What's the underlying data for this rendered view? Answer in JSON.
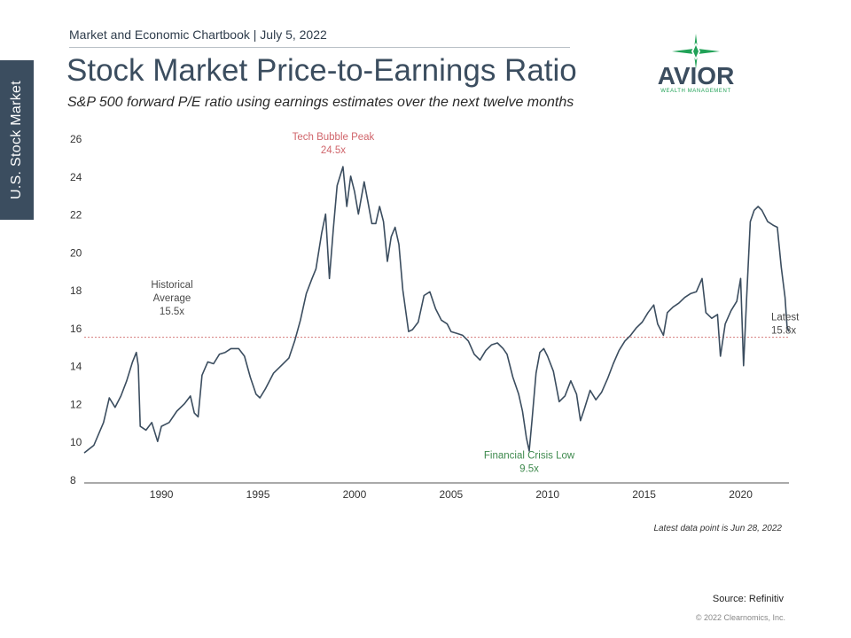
{
  "header": {
    "line": "Market and Economic Chartbook | July 5, 2022",
    "title": "Stock Market Price-to-Earnings Ratio",
    "subtitle": "S&P 500 forward P/E ratio using earnings estimates over the next twelve months"
  },
  "sidebar": {
    "label": "U.S. Stock Market"
  },
  "logo": {
    "word": "AVIOR",
    "tagline": "WEALTH MANAGEMENT"
  },
  "chart_data": {
    "type": "line",
    "title": "",
    "xlabel": "",
    "ylabel": "",
    "xlim": [
      1986,
      2022.5
    ],
    "ylim": [
      8,
      26
    ],
    "yticks": [
      8,
      10,
      12,
      14,
      16,
      18,
      20,
      22,
      24,
      26
    ],
    "xticks": [
      1990,
      1995,
      2000,
      2005,
      2010,
      2015,
      2020
    ],
    "grid": false,
    "reference_line": {
      "value": 15.5,
      "style": "dotted",
      "color": "#d47a7a"
    },
    "series": [
      {
        "color": "#3b4d5f",
        "points": [
          [
            1986.0,
            9.4
          ],
          [
            1986.5,
            9.8
          ],
          [
            1987.0,
            11.0
          ],
          [
            1987.3,
            12.3
          ],
          [
            1987.6,
            11.8
          ],
          [
            1987.9,
            12.4
          ],
          [
            1988.2,
            13.2
          ],
          [
            1988.5,
            14.2
          ],
          [
            1988.7,
            14.7
          ],
          [
            1988.8,
            14.0
          ],
          [
            1988.9,
            10.8
          ],
          [
            1989.2,
            10.6
          ],
          [
            1989.5,
            11.0
          ],
          [
            1989.8,
            10.0
          ],
          [
            1990.0,
            10.8
          ],
          [
            1990.4,
            11.0
          ],
          [
            1990.8,
            11.6
          ],
          [
            1991.2,
            12.0
          ],
          [
            1991.5,
            12.4
          ],
          [
            1991.7,
            11.5
          ],
          [
            1991.9,
            11.3
          ],
          [
            1992.1,
            13.5
          ],
          [
            1992.4,
            14.2
          ],
          [
            1992.7,
            14.1
          ],
          [
            1993.0,
            14.6
          ],
          [
            1993.3,
            14.7
          ],
          [
            1993.6,
            14.9
          ],
          [
            1994.0,
            14.9
          ],
          [
            1994.3,
            14.5
          ],
          [
            1994.6,
            13.4
          ],
          [
            1994.9,
            12.5
          ],
          [
            1995.1,
            12.3
          ],
          [
            1995.4,
            12.8
          ],
          [
            1995.8,
            13.6
          ],
          [
            1996.2,
            14.0
          ],
          [
            1996.6,
            14.4
          ],
          [
            1996.9,
            15.3
          ],
          [
            1997.2,
            16.4
          ],
          [
            1997.5,
            17.8
          ],
          [
            1997.8,
            18.6
          ],
          [
            1998.0,
            19.1
          ],
          [
            1998.3,
            21.0
          ],
          [
            1998.5,
            22.0
          ],
          [
            1998.7,
            18.6
          ],
          [
            1998.9,
            21.2
          ],
          [
            1999.1,
            23.5
          ],
          [
            1999.4,
            24.5
          ],
          [
            1999.6,
            22.4
          ],
          [
            1999.8,
            24.0
          ],
          [
            2000.0,
            23.2
          ],
          [
            2000.2,
            22.0
          ],
          [
            2000.5,
            23.7
          ],
          [
            2000.7,
            22.6
          ],
          [
            2000.9,
            21.5
          ],
          [
            2001.1,
            21.5
          ],
          [
            2001.3,
            22.4
          ],
          [
            2001.5,
            21.6
          ],
          [
            2001.7,
            19.5
          ],
          [
            2001.9,
            20.8
          ],
          [
            2002.1,
            21.3
          ],
          [
            2002.3,
            20.4
          ],
          [
            2002.5,
            18.0
          ],
          [
            2002.8,
            15.8
          ],
          [
            2003.0,
            15.9
          ],
          [
            2003.3,
            16.3
          ],
          [
            2003.6,
            17.7
          ],
          [
            2003.9,
            17.9
          ],
          [
            2004.2,
            17.0
          ],
          [
            2004.5,
            16.4
          ],
          [
            2004.8,
            16.2
          ],
          [
            2005.0,
            15.8
          ],
          [
            2005.3,
            15.7
          ],
          [
            2005.6,
            15.6
          ],
          [
            2005.9,
            15.3
          ],
          [
            2006.2,
            14.6
          ],
          [
            2006.5,
            14.3
          ],
          [
            2006.8,
            14.8
          ],
          [
            2007.1,
            15.1
          ],
          [
            2007.4,
            15.2
          ],
          [
            2007.7,
            14.9
          ],
          [
            2007.9,
            14.6
          ],
          [
            2008.2,
            13.4
          ],
          [
            2008.5,
            12.5
          ],
          [
            2008.7,
            11.6
          ],
          [
            2008.9,
            10.2
          ],
          [
            2009.05,
            9.5
          ],
          [
            2009.2,
            11.2
          ],
          [
            2009.4,
            13.6
          ],
          [
            2009.6,
            14.7
          ],
          [
            2009.8,
            14.9
          ],
          [
            2010.0,
            14.5
          ],
          [
            2010.3,
            13.7
          ],
          [
            2010.6,
            12.1
          ],
          [
            2010.9,
            12.4
          ],
          [
            2011.2,
            13.2
          ],
          [
            2011.5,
            12.5
          ],
          [
            2011.7,
            11.1
          ],
          [
            2011.9,
            11.7
          ],
          [
            2012.2,
            12.7
          ],
          [
            2012.5,
            12.2
          ],
          [
            2012.8,
            12.6
          ],
          [
            2013.1,
            13.3
          ],
          [
            2013.4,
            14.1
          ],
          [
            2013.7,
            14.8
          ],
          [
            2014.0,
            15.3
          ],
          [
            2014.3,
            15.6
          ],
          [
            2014.6,
            16.0
          ],
          [
            2014.9,
            16.3
          ],
          [
            2015.2,
            16.8
          ],
          [
            2015.5,
            17.2
          ],
          [
            2015.7,
            16.2
          ],
          [
            2016.0,
            15.6
          ],
          [
            2016.2,
            16.8
          ],
          [
            2016.5,
            17.1
          ],
          [
            2016.8,
            17.3
          ],
          [
            2017.1,
            17.6
          ],
          [
            2017.4,
            17.8
          ],
          [
            2017.7,
            17.9
          ],
          [
            2018.0,
            18.6
          ],
          [
            2018.2,
            16.8
          ],
          [
            2018.5,
            16.5
          ],
          [
            2018.8,
            16.7
          ],
          [
            2018.95,
            14.5
          ],
          [
            2019.2,
            16.2
          ],
          [
            2019.5,
            16.9
          ],
          [
            2019.8,
            17.4
          ],
          [
            2020.0,
            18.6
          ],
          [
            2020.15,
            14.0
          ],
          [
            2020.3,
            17.4
          ],
          [
            2020.5,
            21.6
          ],
          [
            2020.7,
            22.2
          ],
          [
            2020.9,
            22.4
          ],
          [
            2021.1,
            22.2
          ],
          [
            2021.4,
            21.6
          ],
          [
            2021.7,
            21.4
          ],
          [
            2021.9,
            21.3
          ],
          [
            2022.1,
            19.2
          ],
          [
            2022.3,
            17.6
          ],
          [
            2022.4,
            16.1
          ],
          [
            2022.49,
            15.8
          ]
        ]
      }
    ],
    "annotations": [
      {
        "lines": [
          "Historical",
          "Average",
          "15.5x"
        ],
        "x": 1986.8,
        "y": 18.1,
        "color": "#4a4a4a"
      },
      {
        "lines": [
          "Tech Bubble Peak",
          "24.5x"
        ],
        "x": 1998.9,
        "y": 25.9,
        "color": "#d0656b"
      },
      {
        "lines": [
          "Financial Crisis Low",
          "9.5x"
        ],
        "x": 2009.05,
        "y": 9.1,
        "color": "#3f8a4e"
      },
      {
        "lines": [
          "Latest",
          "15.8x"
        ],
        "x": 2022.5,
        "y": 16.4,
        "color": "#4a4a4a"
      }
    ]
  },
  "footer": {
    "note": "Latest data point is Jun 28, 2022",
    "source": "Source: Refinitiv",
    "copyright": "© 2022 Clearnomics, Inc."
  }
}
